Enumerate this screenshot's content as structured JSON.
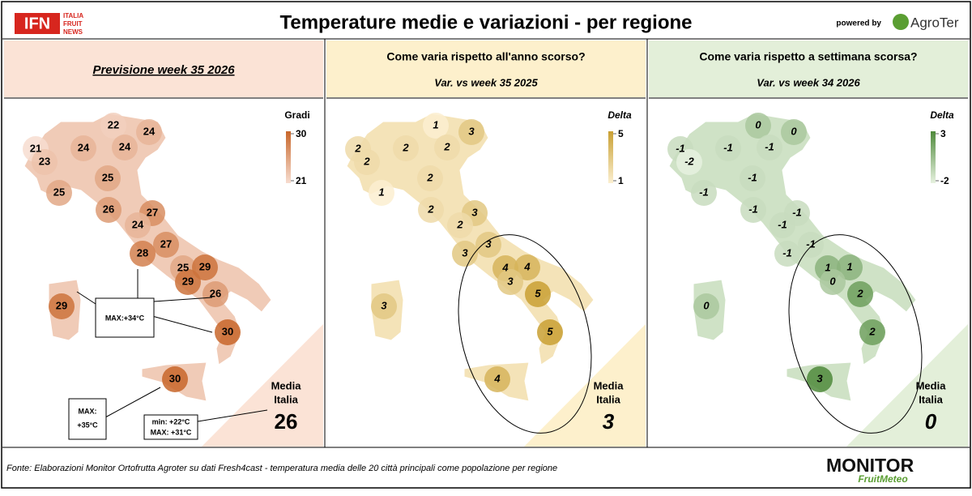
{
  "header": {
    "logo": "IFN",
    "logo_lines": [
      "ITALIA",
      "FRUIT",
      "NEWS"
    ],
    "title": "Temperature medie e variazioni - per regione",
    "powered_by": "powered by",
    "brand": "AgroTer"
  },
  "panels": [
    {
      "heading": "Previsione week 35 2026",
      "legend_title": "Gradi",
      "legend_max": 30,
      "legend_min": 21,
      "color_high": "#c8662a",
      "color_low": "#f7ddd0",
      "header_color": "#fbe3d6",
      "values": [
        22,
        24,
        21,
        24,
        24,
        23,
        25,
        25,
        26,
        27,
        24,
        27,
        28,
        25,
        29,
        29,
        26,
        30,
        30,
        29
      ],
      "avg_label": [
        "Media",
        "Italia"
      ],
      "avg": 26
    },
    {
      "heading": "Come varia rispetto all'anno scorso?",
      "subheading": "Var. vs week 35 2025",
      "legend_title": "Delta",
      "legend_max": 5,
      "legend_min": 1,
      "color_high": "#c9a033",
      "color_low": "#fbefd0",
      "header_color": "#fdf0cc",
      "values": [
        1,
        3,
        2,
        2,
        2,
        2,
        2,
        1,
        2,
        3,
        2,
        3,
        3,
        4,
        4,
        3,
        5,
        5,
        4,
        3
      ],
      "avg_label": [
        "Media",
        "Italia"
      ],
      "avg": 3
    },
    {
      "heading": "Come varia rispetto a settimana scorsa?",
      "subheading": "Var. vs week 34 2026",
      "legend_title": "Delta",
      "legend_max": 3,
      "legend_min": -2,
      "color_high": "#4f8a3b",
      "color_low": "#e6f1df",
      "header_color": "#e3efd9",
      "values": [
        0,
        0,
        -1,
        -1,
        -1,
        -2,
        -1,
        -1,
        -1,
        -1,
        -1,
        -1,
        -1,
        1,
        1,
        0,
        2,
        2,
        3,
        0
      ],
      "avg_label": [
        "Media",
        "Italia"
      ],
      "avg": 0
    }
  ],
  "annotations": {
    "max_34": "MAX:+34°C",
    "max_35": [
      "MAX:",
      "+35°C"
    ],
    "min_max": [
      "min: +22°C",
      "MAX: +31°C"
    ]
  },
  "footer": {
    "source": "Fonte: Elaborazioni Monitor Ortofrutta Agroter su dati Fresh4cast - temperatura media delle 20 città principali come popolazione per regione",
    "brand": "MONITOR",
    "sub": "FruitMeteo"
  }
}
